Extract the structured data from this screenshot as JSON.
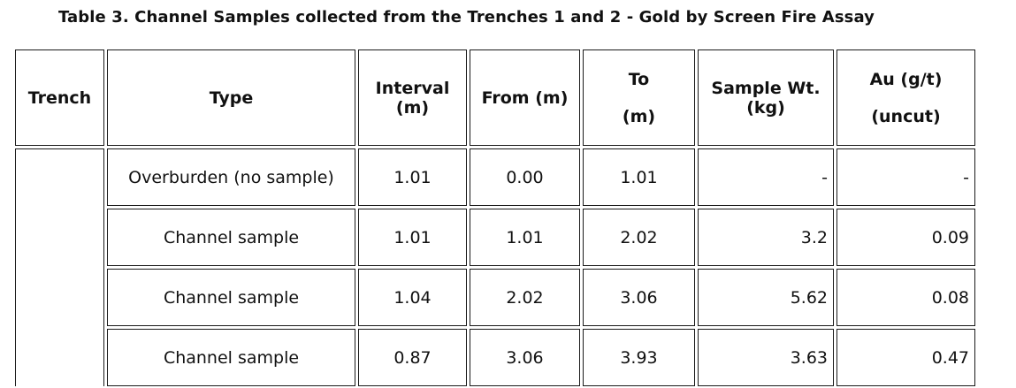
{
  "title": "Table 3. Channel Samples collected from the Trenches 1 and 2 - Gold by Screen Fire Assay",
  "headers": {
    "trench": "Trench",
    "type": "Type",
    "interval_line1": "Interval",
    "interval_line2": "(m)",
    "from": "From (m)",
    "to_line1": "To",
    "to_line2": "(m)",
    "sample_wt_line1": "Sample Wt.",
    "sample_wt_line2": "(kg)",
    "au_line1": "Au (g/t)",
    "au_line2": "(uncut)"
  },
  "rows": [
    {
      "type": "Overburden (no sample)",
      "interval": "1.01",
      "from": "0.00",
      "to": "1.01",
      "sample_wt": "-",
      "au": "-"
    },
    {
      "type": "Channel sample",
      "interval": "1.01",
      "from": "1.01",
      "to": "2.02",
      "sample_wt": "3.2",
      "au": "0.09"
    },
    {
      "type": "Channel sample",
      "interval": "1.04",
      "from": "2.02",
      "to": "3.06",
      "sample_wt": "5.62",
      "au": "0.08"
    },
    {
      "type": "Channel sample",
      "interval": "0.87",
      "from": "3.06",
      "to": "3.93",
      "sample_wt": "3.63",
      "au": "0.47"
    }
  ]
}
